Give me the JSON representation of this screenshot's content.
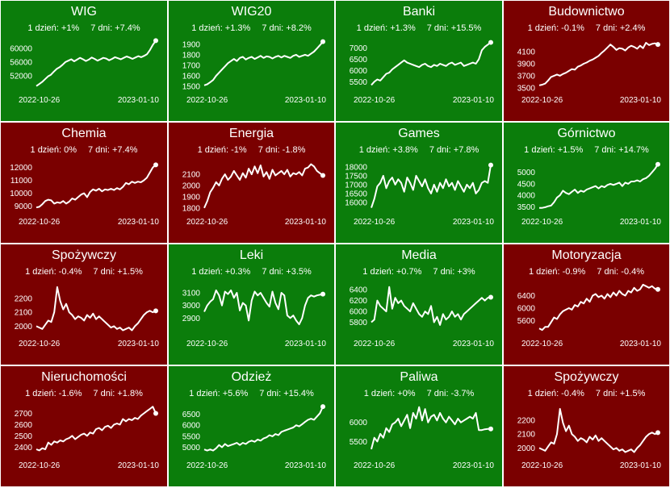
{
  "chart_data": [
    {
      "type": "line",
      "title": "WIG",
      "trend": "up",
      "stat_1d": "1 dzień: +1%",
      "stat_7d": "7 dni: +7.4%",
      "x_start": "2022-10-26",
      "x_end": "2023-01-10",
      "yticks": [
        52000,
        56000,
        60000
      ],
      "ylim": [
        48000,
        63000
      ],
      "values": [
        49000,
        49600,
        50200,
        51000,
        51800,
        52300,
        53200,
        54000,
        54500,
        55200,
        56000,
        56400,
        56800,
        56200,
        56700,
        57200,
        56800,
        56300,
        56700,
        57300,
        56900,
        56400,
        56800,
        57200,
        57000,
        56500,
        56900,
        57400,
        57100,
        56800,
        57200,
        57600,
        57300,
        56900,
        57300,
        57700,
        57400,
        57800,
        58300,
        59500,
        61000,
        62200
      ]
    },
    {
      "type": "line",
      "title": "WIG20",
      "trend": "up",
      "stat_1d": "1 dzień: +1.3%",
      "stat_7d": "7 dni: +8.2%",
      "x_start": "2022-10-26",
      "x_end": "2023-01-10",
      "yticks": [
        1500,
        1600,
        1700,
        1800,
        1900
      ],
      "ylim": [
        1470,
        1960
      ],
      "values": [
        1510,
        1520,
        1540,
        1560,
        1600,
        1630,
        1660,
        1690,
        1720,
        1740,
        1760,
        1740,
        1770,
        1780,
        1755,
        1770,
        1780,
        1760,
        1775,
        1790,
        1770,
        1785,
        1780,
        1765,
        1780,
        1790,
        1775,
        1790,
        1780,
        1770,
        1790,
        1800,
        1780,
        1790,
        1800,
        1790,
        1810,
        1830,
        1860,
        1890,
        1925
      ]
    },
    {
      "type": "line",
      "title": "Banki",
      "trend": "up",
      "stat_1d": "1 dzień: +1.3%",
      "stat_7d": "7 dni: +15.5%",
      "x_start": "2022-10-26",
      "x_end": "2023-01-10",
      "yticks": [
        5500,
        6000,
        6500,
        7000
      ],
      "ylim": [
        5150,
        7450
      ],
      "values": [
        5350,
        5500,
        5600,
        5550,
        5700,
        5850,
        5900,
        6050,
        6150,
        6250,
        6350,
        6450,
        6350,
        6300,
        6250,
        6200,
        6150,
        6250,
        6300,
        6200,
        6150,
        6250,
        6200,
        6300,
        6250,
        6200,
        6300,
        6350,
        6250,
        6300,
        6350,
        6200,
        6250,
        6300,
        6350,
        6300,
        6500,
        6900,
        7050,
        7150,
        7250
      ]
    },
    {
      "type": "line",
      "title": "Budownictwo",
      "trend": "down",
      "stat_1d": "1 dzień: -0.1%",
      "stat_7d": "7 dni: +2.4%",
      "x_start": "2022-10-26",
      "x_end": "2023-01-10",
      "yticks": [
        3500,
        3700,
        3900,
        4100
      ],
      "ylim": [
        3470,
        4330
      ],
      "values": [
        3540,
        3550,
        3570,
        3620,
        3680,
        3700,
        3720,
        3700,
        3730,
        3750,
        3780,
        3810,
        3800,
        3850,
        3870,
        3900,
        3920,
        3950,
        3970,
        4000,
        4030,
        4080,
        4120,
        4170,
        4220,
        4180,
        4130,
        4160,
        4150,
        4120,
        4170,
        4200,
        4180,
        4150,
        4200,
        4160,
        4250,
        4210,
        4230,
        4240,
        4220
      ]
    },
    {
      "type": "line",
      "title": "Chemia",
      "trend": "down",
      "stat_1d": "1 dzień: 0%",
      "stat_7d": "7 dni: +7.4%",
      "x_start": "2022-10-26",
      "x_end": "2023-01-10",
      "yticks": [
        9000,
        10000,
        11000,
        12000
      ],
      "ylim": [
        8600,
        12600
      ],
      "values": [
        8900,
        8950,
        9150,
        9400,
        9500,
        9450,
        9200,
        9300,
        9250,
        9400,
        9200,
        9350,
        9600,
        9500,
        9700,
        9900,
        10000,
        9700,
        10100,
        10300,
        10200,
        10350,
        10150,
        10300,
        10250,
        10350,
        10250,
        10400,
        10300,
        10500,
        10800,
        10700,
        10900,
        10800,
        10900,
        10850,
        11000,
        11200,
        11600,
        12000,
        12200
      ]
    },
    {
      "type": "line",
      "title": "Energia",
      "trend": "down",
      "stat_1d": "1 dzień: -1%",
      "stat_7d": "7 dni: -1.8%",
      "x_start": "2022-10-26",
      "x_end": "2023-01-10",
      "yticks": [
        1800,
        1900,
        2000,
        2100
      ],
      "ylim": [
        1770,
        2230
      ],
      "values": [
        1800,
        1860,
        1940,
        1980,
        2030,
        2000,
        2060,
        2100,
        2050,
        2080,
        2130,
        2090,
        2050,
        2110,
        2070,
        2150,
        2100,
        2170,
        2110,
        2180,
        2080,
        2120,
        2060,
        2140,
        2090,
        2110,
        2130,
        2100,
        2140,
        2080,
        2110,
        2100,
        2120,
        2090,
        2150,
        2160,
        2190,
        2170,
        2130,
        2110,
        2090
      ]
    },
    {
      "type": "line",
      "title": "Games",
      "trend": "up",
      "stat_1d": "1 dzień: +3.8%",
      "stat_7d": "7 dni: +7.8%",
      "x_start": "2022-10-26",
      "x_end": "2023-01-10",
      "yticks": [
        16000,
        16500,
        17000,
        17500,
        18000
      ],
      "ylim": [
        15500,
        18400
      ],
      "values": [
        15700,
        16200,
        16900,
        17100,
        17500,
        16800,
        17200,
        17400,
        17000,
        17300,
        17100,
        16600,
        17400,
        17100,
        16700,
        17500,
        17200,
        16900,
        17300,
        16800,
        16500,
        17000,
        16600,
        17100,
        16800,
        17300,
        16900,
        17100,
        16700,
        17200,
        16900,
        16600,
        17000,
        16800,
        17100,
        16500,
        16700,
        17100,
        17200,
        17100,
        18100
      ]
    },
    {
      "type": "line",
      "title": "Górnictwo",
      "trend": "up",
      "stat_1d": "1 dzień: +1.5%",
      "stat_7d": "7 dni: +14.7%",
      "x_start": "2022-10-26",
      "x_end": "2023-01-10",
      "yticks": [
        3500,
        4000,
        4500,
        5000
      ],
      "ylim": [
        3300,
        5550
      ],
      "values": [
        3450,
        3450,
        3480,
        3520,
        3550,
        3700,
        3900,
        4000,
        4200,
        4100,
        4050,
        4150,
        4250,
        4100,
        4200,
        4150,
        4250,
        4300,
        4350,
        4400,
        4300,
        4400,
        4350,
        4450,
        4500,
        4450,
        4500,
        4550,
        4400,
        4550,
        4500,
        4600,
        4600,
        4650,
        4600,
        4700,
        4750,
        4850,
        5000,
        5150,
        5350
      ]
    },
    {
      "type": "line",
      "title": "Spożywczy",
      "trend": "down",
      "stat_1d": "1 dzień: -0.4%",
      "stat_7d": "7 dni: +1.5%",
      "x_start": "2022-10-26",
      "x_end": "2023-01-10",
      "yticks": [
        2000,
        2100,
        2200
      ],
      "ylim": [
        1950,
        2320
      ],
      "values": [
        2000,
        1990,
        1980,
        2010,
        2040,
        2030,
        2100,
        2280,
        2180,
        2120,
        2160,
        2100,
        2080,
        2050,
        2070,
        2060,
        2040,
        2080,
        2060,
        2090,
        2050,
        2070,
        2050,
        2030,
        2010,
        1990,
        2000,
        1980,
        1990,
        1970,
        1980,
        1990,
        1970,
        2000,
        2020,
        2050,
        2080,
        2100,
        2110,
        2100,
        2110
      ]
    },
    {
      "type": "line",
      "title": "Leki",
      "trend": "up",
      "stat_1d": "1 dzień: +0.3%",
      "stat_7d": "7 dni: +3.5%",
      "x_start": "2022-10-26",
      "x_end": "2023-01-10",
      "yticks": [
        2900,
        3000,
        3100
      ],
      "ylim": [
        2780,
        3190
      ],
      "values": [
        2950,
        3000,
        3030,
        3050,
        3120,
        3080,
        3000,
        3110,
        3090,
        3120,
        3060,
        3100,
        2960,
        3020,
        3000,
        2880,
        3040,
        3110,
        3080,
        3100,
        3060,
        3020,
        2990,
        3110,
        3020,
        2970,
        3100,
        3080,
        2920,
        2900,
        2920,
        2880,
        2850,
        2900,
        3000,
        3060,
        3080,
        3070,
        3080,
        3085,
        3090
      ]
    },
    {
      "type": "line",
      "title": "Media",
      "trend": "up",
      "stat_1d": "1 dzień: +0.7%",
      "stat_7d": "7 dni: +3%",
      "x_start": "2022-10-26",
      "x_end": "2023-01-10",
      "yticks": [
        5800,
        6000,
        6200,
        6400
      ],
      "ylim": [
        5600,
        6550
      ],
      "values": [
        5800,
        5850,
        6200,
        6100,
        6050,
        6000,
        6450,
        6050,
        6250,
        6150,
        6200,
        6100,
        6050,
        6000,
        6150,
        6050,
        5950,
        5900,
        6000,
        5950,
        6100,
        5800,
        5900,
        5750,
        5950,
        5850,
        5900,
        6000,
        5900,
        5950,
        5850,
        5950,
        6000,
        6050,
        6100,
        6150,
        6200,
        6250,
        6200,
        6250,
        6260
      ]
    },
    {
      "type": "line",
      "title": "Motoryzacja",
      "trend": "down",
      "stat_1d": "1 dzień: -0.9%",
      "stat_7d": "7 dni: -0.4%",
      "x_start": "2022-10-26",
      "x_end": "2023-01-10",
      "yticks": [
        5600,
        6000,
        6400
      ],
      "ylim": [
        5200,
        6850
      ],
      "values": [
        5350,
        5300,
        5400,
        5400,
        5550,
        5700,
        5650,
        5800,
        5900,
        5950,
        6000,
        5950,
        6100,
        6050,
        6200,
        6150,
        6300,
        6200,
        6400,
        6450,
        6350,
        6400,
        6300,
        6450,
        6350,
        6500,
        6400,
        6550,
        6450,
        6400,
        6550,
        6500,
        6650,
        6550,
        6600,
        6750,
        6700,
        6650,
        6700,
        6620,
        6600
      ]
    },
    {
      "type": "line",
      "title": "Nieruchomości",
      "trend": "down",
      "stat_1d": "1 dzień: -1.6%",
      "stat_7d": "7 dni: +1.8%",
      "x_start": "2022-10-26",
      "x_end": "2023-01-10",
      "yticks": [
        2400,
        2500,
        2600,
        2700
      ],
      "ylim": [
        2330,
        2790
      ],
      "values": [
        2380,
        2370,
        2390,
        2380,
        2440,
        2420,
        2450,
        2440,
        2460,
        2450,
        2470,
        2480,
        2500,
        2470,
        2490,
        2510,
        2520,
        2500,
        2530,
        2520,
        2560,
        2570,
        2550,
        2580,
        2590,
        2570,
        2600,
        2610,
        2600,
        2650,
        2630,
        2650,
        2640,
        2660,
        2650,
        2680,
        2700,
        2720,
        2740,
        2760,
        2700
      ]
    },
    {
      "type": "line",
      "title": "Odzież",
      "trend": "up",
      "stat_1d": "1 dzień: +5.6%",
      "stat_7d": "7 dni: +15.4%",
      "x_start": "2022-10-26",
      "x_end": "2023-01-10",
      "yticks": [
        5000,
        5500,
        6000,
        6500
      ],
      "ylim": [
        4650,
        7000
      ],
      "values": [
        4900,
        4850,
        4900,
        4850,
        4950,
        5100,
        5000,
        5150,
        5050,
        5100,
        5150,
        5200,
        5100,
        5200,
        5150,
        5250,
        5300,
        5250,
        5350,
        5300,
        5400,
        5450,
        5550,
        5500,
        5600,
        5550,
        5700,
        5750,
        5800,
        5850,
        5900,
        6000,
        5950,
        6050,
        6150,
        6250,
        6300,
        6250,
        6400,
        6550,
        6850
      ]
    },
    {
      "type": "line",
      "title": "Paliwa",
      "trend": "up",
      "stat_1d": "1 dzień: +0%",
      "stat_7d": "7 dni: -3.7%",
      "x_start": "2022-10-26",
      "x_end": "2023-01-10",
      "yticks": [
        5500,
        6000
      ],
      "ylim": [
        5150,
        6500
      ],
      "values": [
        5300,
        5600,
        5500,
        5700,
        5600,
        5850,
        5750,
        5950,
        6000,
        6100,
        5900,
        6050,
        6200,
        5850,
        6250,
        6100,
        6400,
        6050,
        6350,
        6000,
        6150,
        6200,
        6050,
        6250,
        6100,
        6000,
        6150,
        6050,
        5950,
        6100,
        6000,
        6050,
        6100,
        6150,
        6100,
        6250,
        5800,
        5800,
        5820,
        5830,
        5830
      ]
    },
    {
      "type": "line",
      "title": "Spożywczy",
      "trend": "down",
      "stat_1d": "1 dzień: -0.4%",
      "stat_7d": "7 dni: +1.5%",
      "x_start": "2022-10-26",
      "x_end": "2023-01-10",
      "yticks": [
        2000,
        2100,
        2200
      ],
      "ylim": [
        1950,
        2320
      ],
      "values": [
        2000,
        1990,
        1980,
        2010,
        2040,
        2030,
        2100,
        2280,
        2180,
        2120,
        2160,
        2100,
        2080,
        2050,
        2070,
        2060,
        2040,
        2080,
        2060,
        2090,
        2050,
        2070,
        2050,
        2030,
        2010,
        1990,
        2000,
        1980,
        1990,
        1970,
        1980,
        1990,
        1970,
        2000,
        2020,
        2050,
        2080,
        2100,
        2110,
        2100,
        2110
      ]
    }
  ]
}
